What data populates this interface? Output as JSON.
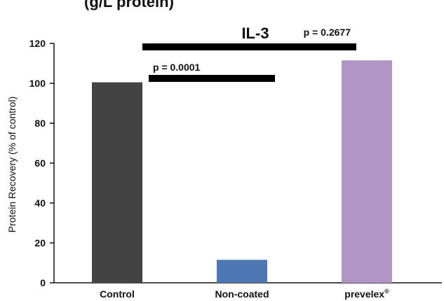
{
  "top_text": "(g/L protein)",
  "chart_data": {
    "type": "bar",
    "title": "IL-3",
    "xlabel": "",
    "ylabel": "Protein Recovery (% of control)",
    "categories": [
      "Control",
      "Non-coated",
      "prevelex"
    ],
    "category_superscripts": [
      "",
      "",
      "®"
    ],
    "values": [
      100.5,
      11.5,
      111.5
    ],
    "colors": [
      "#434343",
      "#4d77b2",
      "#b195c5"
    ],
    "ylim": [
      0,
      120
    ],
    "yticks": [
      0,
      20,
      40,
      60,
      80,
      100,
      120
    ],
    "grid": false,
    "comparisons": [
      {
        "label": "p = 0.0001",
        "from": "Control",
        "to": "Non-coated"
      },
      {
        "label": "p = 0.2677",
        "from": "Control",
        "to": "prevelex"
      }
    ]
  }
}
